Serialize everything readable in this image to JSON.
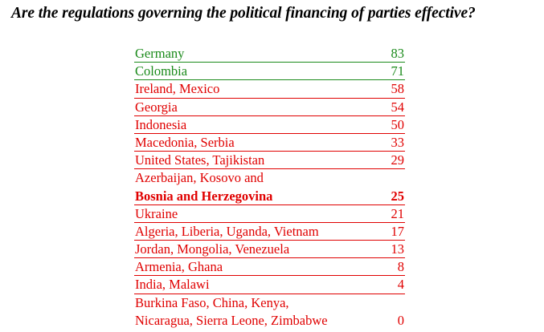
{
  "title": "Are the regulations governing the political financing of parties effective?",
  "colors": {
    "green": "#1a8a1a",
    "red": "#e00000",
    "title": "#000000"
  },
  "chart_data": {
    "type": "table",
    "title": "Are the regulations governing the political financing of parties effective?",
    "rows": [
      {
        "lines": [
          "Germany"
        ],
        "value": 83,
        "color": "green",
        "bold": false
      },
      {
        "lines": [
          "Colombia"
        ],
        "value": 71,
        "color": "green",
        "bold": false
      },
      {
        "lines": [
          "Ireland, Mexico"
        ],
        "value": 58,
        "color": "red",
        "bold": false
      },
      {
        "lines": [
          "Georgia"
        ],
        "value": 54,
        "color": "red",
        "bold": false
      },
      {
        "lines": [
          "Indonesia"
        ],
        "value": 50,
        "color": "red",
        "bold": false
      },
      {
        "lines": [
          "Macedonia, Serbia"
        ],
        "value": 33,
        "color": "red",
        "bold": false
      },
      {
        "lines": [
          "United States, Tajikistan"
        ],
        "value": 29,
        "color": "red",
        "bold": false
      },
      {
        "lines": [
          "Azerbaijan, Kosovo and",
          "Bosnia  and Herzegovina"
        ],
        "value": 25,
        "color": "red",
        "bold": true
      },
      {
        "lines": [
          "Ukraine"
        ],
        "value": 21,
        "color": "red",
        "bold": false
      },
      {
        "lines": [
          "Algeria, Liberia, Uganda, Vietnam"
        ],
        "value": 17,
        "color": "red",
        "bold": false
      },
      {
        "lines": [
          "Jordan, Mongolia, Venezuela"
        ],
        "value": 13,
        "color": "red",
        "bold": false
      },
      {
        "lines": [
          "Armenia, Ghana"
        ],
        "value": 8,
        "color": "red",
        "bold": false
      },
      {
        "lines": [
          "India, Malawi"
        ],
        "value": 4,
        "color": "red",
        "bold": false
      },
      {
        "lines": [
          "Burkina Faso, China, Kenya,",
          "Nicaragua, Sierra Leone, Zimbabwe"
        ],
        "value": 0,
        "color": "red",
        "bold": false
      }
    ]
  }
}
